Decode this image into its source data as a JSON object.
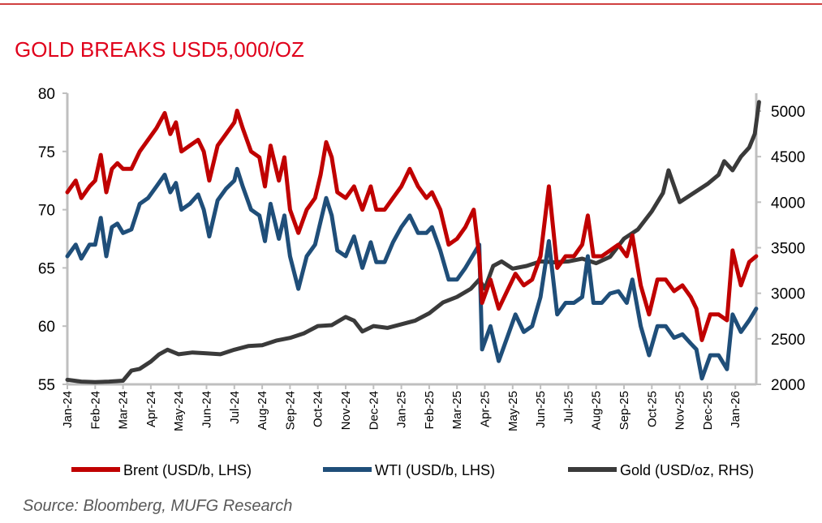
{
  "chart_data": {
    "type": "line",
    "title": "GOLD BREAKS USD5,000/OZ",
    "source": "Source: Bloomberg, MUFG Research",
    "x_tick_labels": [
      "Jan-24",
      "Feb-24",
      "Mar-24",
      "Apr-24",
      "May-24",
      "Jun-24",
      "Jul-24",
      "Aug-24",
      "Sep-24",
      "Oct-24",
      "Nov-24",
      "Dec-24",
      "Jan-25",
      "Feb-25",
      "Mar-25",
      "Apr-25",
      "May-25",
      "Jun-25",
      "Jul-25",
      "Aug-25",
      "Sep-25",
      "Oct-25",
      "Nov-25",
      "Dec-25",
      "Jan-26"
    ],
    "x_unit": "months since Jan-24",
    "y_left": {
      "ticks": [
        55,
        60,
        65,
        70,
        75,
        80
      ],
      "range": [
        55,
        80
      ]
    },
    "y_right": {
      "ticks": [
        2000,
        2500,
        3000,
        3500,
        4000,
        4500,
        5000
      ],
      "range": [
        2000,
        5300
      ]
    },
    "grid": false,
    "legend_position": "bottom",
    "series": [
      {
        "name": "Brent (USD/b, LHS)",
        "axis": "left",
        "color": "#c00000",
        "points": [
          [
            0,
            71.5
          ],
          [
            0.3,
            72.5
          ],
          [
            0.5,
            71
          ],
          [
            0.8,
            72
          ],
          [
            1.0,
            72.5
          ],
          [
            1.2,
            74.7
          ],
          [
            1.4,
            71.5
          ],
          [
            1.6,
            73.5
          ],
          [
            1.8,
            74
          ],
          [
            2.0,
            73.5
          ],
          [
            2.3,
            73.5
          ],
          [
            2.6,
            75
          ],
          [
            2.9,
            76
          ],
          [
            3.2,
            77
          ],
          [
            3.5,
            78.3
          ],
          [
            3.7,
            76.5
          ],
          [
            3.9,
            77.5
          ],
          [
            4.1,
            75
          ],
          [
            4.4,
            75.5
          ],
          [
            4.7,
            76
          ],
          [
            4.9,
            75
          ],
          [
            5.1,
            72.5
          ],
          [
            5.4,
            75.5
          ],
          [
            5.7,
            76.5
          ],
          [
            6.0,
            77.5
          ],
          [
            6.1,
            78.5
          ],
          [
            6.3,
            77
          ],
          [
            6.6,
            75
          ],
          [
            6.9,
            74.5
          ],
          [
            7.1,
            72
          ],
          [
            7.3,
            75.5
          ],
          [
            7.6,
            72.5
          ],
          [
            7.8,
            74.5
          ],
          [
            8.0,
            70
          ],
          [
            8.3,
            68
          ],
          [
            8.6,
            70
          ],
          [
            8.9,
            71
          ],
          [
            9.1,
            73
          ],
          [
            9.3,
            75.8
          ],
          [
            9.5,
            74.5
          ],
          [
            9.7,
            71.5
          ],
          [
            10.0,
            71
          ],
          [
            10.3,
            72
          ],
          [
            10.6,
            70
          ],
          [
            10.9,
            72
          ],
          [
            11.1,
            70
          ],
          [
            11.4,
            70
          ],
          [
            11.7,
            71
          ],
          [
            12.0,
            72
          ],
          [
            12.3,
            73.5
          ],
          [
            12.6,
            72
          ],
          [
            12.9,
            71
          ],
          [
            13.1,
            71.5
          ],
          [
            13.4,
            70
          ],
          [
            13.7,
            67
          ],
          [
            14.0,
            67.5
          ],
          [
            14.3,
            68.5
          ],
          [
            14.6,
            70
          ],
          [
            14.8,
            66
          ],
          [
            14.9,
            62
          ],
          [
            15.2,
            64
          ],
          [
            15.5,
            61.5
          ],
          [
            15.8,
            63
          ],
          [
            16.1,
            64.5
          ],
          [
            16.4,
            63.5
          ],
          [
            16.7,
            64
          ],
          [
            17.0,
            66
          ],
          [
            17.3,
            72
          ],
          [
            17.6,
            65
          ],
          [
            17.9,
            66
          ],
          [
            18.2,
            66
          ],
          [
            18.5,
            67
          ],
          [
            18.7,
            69.5
          ],
          [
            18.9,
            66
          ],
          [
            19.2,
            66
          ],
          [
            19.5,
            66.5
          ],
          [
            19.8,
            67
          ],
          [
            20.1,
            66
          ],
          [
            20.3,
            67.8
          ],
          [
            20.6,
            63.5
          ],
          [
            20.9,
            61
          ],
          [
            21.2,
            64
          ],
          [
            21.5,
            64
          ],
          [
            21.8,
            63
          ],
          [
            22.1,
            63.5
          ],
          [
            22.4,
            62.5
          ],
          [
            22.6,
            61.5
          ],
          [
            22.8,
            58.8
          ],
          [
            23.1,
            61
          ],
          [
            23.4,
            61
          ],
          [
            23.7,
            60.5
          ],
          [
            23.9,
            66.5
          ],
          [
            24.2,
            63.5
          ],
          [
            24.5,
            65.5
          ],
          [
            24.75,
            66
          ]
        ]
      },
      {
        "name": "WTI (USD/b, LHS)",
        "axis": "left",
        "color": "#1f4e79",
        "points": [
          [
            0,
            66
          ],
          [
            0.3,
            67
          ],
          [
            0.5,
            65.8
          ],
          [
            0.8,
            67
          ],
          [
            1.0,
            67
          ],
          [
            1.2,
            69.3
          ],
          [
            1.4,
            66
          ],
          [
            1.6,
            68.5
          ],
          [
            1.8,
            68.8
          ],
          [
            2.0,
            68
          ],
          [
            2.3,
            68.3
          ],
          [
            2.6,
            70.5
          ],
          [
            2.9,
            71
          ],
          [
            3.2,
            72
          ],
          [
            3.5,
            73
          ],
          [
            3.7,
            71.5
          ],
          [
            3.9,
            72.3
          ],
          [
            4.1,
            70
          ],
          [
            4.4,
            70.5
          ],
          [
            4.7,
            71.3
          ],
          [
            4.9,
            70
          ],
          [
            5.1,
            67.7
          ],
          [
            5.4,
            70.8
          ],
          [
            5.7,
            71.8
          ],
          [
            6.0,
            72.5
          ],
          [
            6.1,
            73.5
          ],
          [
            6.3,
            72
          ],
          [
            6.6,
            70
          ],
          [
            6.9,
            69.5
          ],
          [
            7.1,
            67.3
          ],
          [
            7.3,
            70.5
          ],
          [
            7.6,
            67.5
          ],
          [
            7.8,
            69.5
          ],
          [
            8.0,
            66
          ],
          [
            8.3,
            63.2
          ],
          [
            8.6,
            66
          ],
          [
            8.9,
            67
          ],
          [
            9.1,
            69
          ],
          [
            9.3,
            71
          ],
          [
            9.5,
            69.5
          ],
          [
            9.7,
            66.5
          ],
          [
            10.0,
            66
          ],
          [
            10.3,
            67.7
          ],
          [
            10.6,
            65
          ],
          [
            10.9,
            67.2
          ],
          [
            11.1,
            65.5
          ],
          [
            11.4,
            65.5
          ],
          [
            11.7,
            67.2
          ],
          [
            12.0,
            68.5
          ],
          [
            12.3,
            69.5
          ],
          [
            12.6,
            68
          ],
          [
            12.9,
            68
          ],
          [
            13.1,
            68.5
          ],
          [
            13.4,
            66.5
          ],
          [
            13.7,
            64
          ],
          [
            14.0,
            64
          ],
          [
            14.3,
            65
          ],
          [
            14.6,
            66.2
          ],
          [
            14.8,
            67
          ],
          [
            14.9,
            58
          ],
          [
            15.2,
            60
          ],
          [
            15.5,
            57
          ],
          [
            15.8,
            59
          ],
          [
            16.1,
            61
          ],
          [
            16.4,
            59.5
          ],
          [
            16.7,
            60
          ],
          [
            17.0,
            62.5
          ],
          [
            17.3,
            67.3
          ],
          [
            17.6,
            61
          ],
          [
            17.9,
            62
          ],
          [
            18.2,
            62
          ],
          [
            18.5,
            62.5
          ],
          [
            18.7,
            66
          ],
          [
            18.9,
            62
          ],
          [
            19.2,
            62
          ],
          [
            19.5,
            62.8
          ],
          [
            19.8,
            63
          ],
          [
            20.1,
            62
          ],
          [
            20.3,
            64
          ],
          [
            20.6,
            60
          ],
          [
            20.9,
            57.5
          ],
          [
            21.2,
            60
          ],
          [
            21.5,
            60
          ],
          [
            21.8,
            59
          ],
          [
            22.1,
            59.3
          ],
          [
            22.4,
            58.5
          ],
          [
            22.6,
            58
          ],
          [
            22.8,
            55.5
          ],
          [
            23.1,
            57.5
          ],
          [
            23.4,
            57.5
          ],
          [
            23.7,
            56.3
          ],
          [
            23.9,
            61
          ],
          [
            24.2,
            59.5
          ],
          [
            24.5,
            60.5
          ],
          [
            24.75,
            61.5
          ]
        ]
      },
      {
        "name": "Gold (USD/oz, RHS)",
        "axis": "right",
        "color": "#3a3a3a",
        "points": [
          [
            0,
            2050
          ],
          [
            0.5,
            2030
          ],
          [
            1,
            2025
          ],
          [
            1.5,
            2030
          ],
          [
            2,
            2040
          ],
          [
            2.3,
            2150
          ],
          [
            2.6,
            2170
          ],
          [
            3,
            2250
          ],
          [
            3.3,
            2330
          ],
          [
            3.6,
            2380
          ],
          [
            4,
            2330
          ],
          [
            4.5,
            2350
          ],
          [
            5,
            2340
          ],
          [
            5.5,
            2330
          ],
          [
            6,
            2380
          ],
          [
            6.5,
            2420
          ],
          [
            7,
            2430
          ],
          [
            7.5,
            2480
          ],
          [
            8,
            2510
          ],
          [
            8.5,
            2560
          ],
          [
            9,
            2640
          ],
          [
            9.5,
            2650
          ],
          [
            10,
            2740
          ],
          [
            10.3,
            2700
          ],
          [
            10.6,
            2580
          ],
          [
            11,
            2640
          ],
          [
            11.5,
            2620
          ],
          [
            12,
            2660
          ],
          [
            12.5,
            2700
          ],
          [
            13,
            2780
          ],
          [
            13.5,
            2900
          ],
          [
            14,
            2960
          ],
          [
            14.5,
            3050
          ],
          [
            14.8,
            3150
          ],
          [
            15,
            3050
          ],
          [
            15.3,
            3300
          ],
          [
            15.6,
            3350
          ],
          [
            16,
            3270
          ],
          [
            16.5,
            3300
          ],
          [
            17,
            3350
          ],
          [
            17.5,
            3340
          ],
          [
            18,
            3350
          ],
          [
            18.5,
            3380
          ],
          [
            19,
            3330
          ],
          [
            19.5,
            3400
          ],
          [
            20,
            3600
          ],
          [
            20.5,
            3700
          ],
          [
            21,
            3900
          ],
          [
            21.4,
            4100
          ],
          [
            21.6,
            4350
          ],
          [
            22,
            4000
          ],
          [
            22.5,
            4100
          ],
          [
            23,
            4200
          ],
          [
            23.4,
            4300
          ],
          [
            23.6,
            4450
          ],
          [
            23.9,
            4350
          ],
          [
            24.2,
            4500
          ],
          [
            24.5,
            4600
          ],
          [
            24.7,
            4750
          ],
          [
            24.85,
            5100
          ]
        ]
      }
    ]
  }
}
